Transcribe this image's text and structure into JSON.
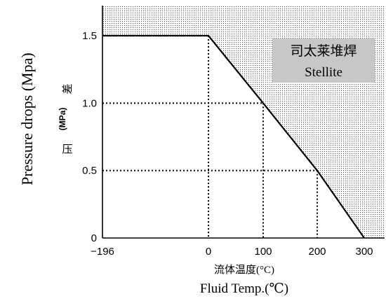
{
  "chart_data": {
    "type": "line",
    "title": "",
    "ylabel_en": "Pressure drops (Mpa)",
    "ylabel_cn_1": "压",
    "ylabel_cn_2": "差",
    "ylabel_unit": "(MPa)",
    "xlabel_cn": "流体温度(°C)",
    "xlabel_en": "Fluid Temp.(℃)",
    "x_ticks": [
      "−196",
      "0",
      "100",
      "200",
      "300"
    ],
    "x_tick_values": [
      -196,
      0,
      100,
      200,
      300
    ],
    "y_ticks": [
      "0",
      "0.5",
      "1.0",
      "1.5"
    ],
    "y_tick_values": [
      0,
      0.5,
      1.0,
      1.5
    ],
    "ylim": [
      0,
      1.72
    ],
    "series": [
      {
        "values": [
          [
            -196,
            1.5
          ],
          [
            0,
            1.5
          ],
          [
            100,
            1.0
          ],
          [
            200,
            0.5
          ],
          [
            300,
            0
          ]
        ]
      }
    ],
    "guide_points": [
      [
        0,
        1.5
      ],
      [
        100,
        1.0
      ],
      [
        200,
        0.5
      ]
    ],
    "shaded_region": "above line",
    "annotation_line1": "司太莱堆焊",
    "annotation_line2": "Stellite",
    "grid": false
  }
}
